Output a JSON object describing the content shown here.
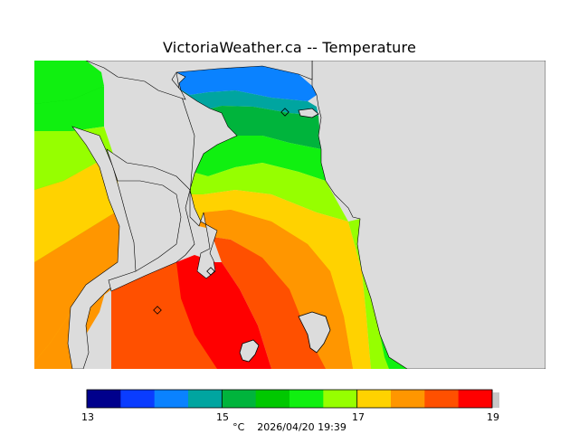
{
  "title": "VictoriaWeather.ca -- Temperature",
  "units": "°C",
  "timestamp": "2026/04/20 19:39",
  "colorbar": {
    "min": 13,
    "max": 19,
    "step": 0.5,
    "tick_labels": [
      "13",
      "15",
      "17",
      "19"
    ],
    "colors": [
      "#00008c",
      "#0000e6",
      "#0a3cff",
      "#0a82ff",
      "#00a5a0",
      "#00b43c",
      "#00c800",
      "#10f010",
      "#96ff00",
      "#ffd200",
      "#ff9600",
      "#ff5000",
      "#ff0000"
    ]
  },
  "colors": {
    "land_gray": "#dcdcdc",
    "coast_line": "#000000"
  },
  "markers": [
    "station-marker-1",
    "station-marker-2",
    "station-marker-3"
  ]
}
